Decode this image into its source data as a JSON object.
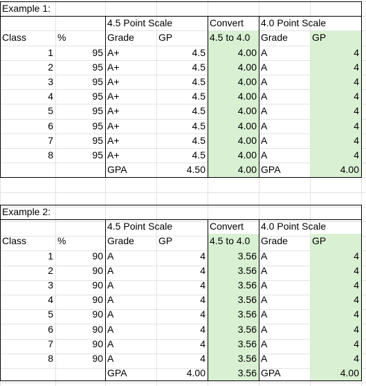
{
  "colors": {
    "accent_green": "#d9f0d3",
    "gridline": "#e2e2e2",
    "border": "#000000"
  },
  "examples": [
    {
      "title": "Example 1:",
      "scale45_header": "4.5 Point Scale",
      "convert_header": "Convert",
      "scale40_header": "4.0 Point Scale",
      "columns": {
        "class": "Class",
        "percent": "%",
        "grade45": "Grade",
        "gp45": "GP",
        "convert": "4.5 to 4.0",
        "grade40": "Grade",
        "gp40": "GP"
      },
      "rows": [
        {
          "class": "1",
          "percent": "95",
          "grade45": "A+",
          "gp45": "4.5",
          "convert": "4.00",
          "grade40": "A",
          "gp40": "4"
        },
        {
          "class": "2",
          "percent": "95",
          "grade45": "A+",
          "gp45": "4.5",
          "convert": "4.00",
          "grade40": "A",
          "gp40": "4"
        },
        {
          "class": "3",
          "percent": "95",
          "grade45": "A+",
          "gp45": "4.5",
          "convert": "4.00",
          "grade40": "A",
          "gp40": "4"
        },
        {
          "class": "4",
          "percent": "95",
          "grade45": "A+",
          "gp45": "4.5",
          "convert": "4.00",
          "grade40": "A",
          "gp40": "4"
        },
        {
          "class": "5",
          "percent": "95",
          "grade45": "A+",
          "gp45": "4.5",
          "convert": "4.00",
          "grade40": "A",
          "gp40": "4"
        },
        {
          "class": "6",
          "percent": "95",
          "grade45": "A+",
          "gp45": "4.5",
          "convert": "4.00",
          "grade40": "A",
          "gp40": "4"
        },
        {
          "class": "7",
          "percent": "95",
          "grade45": "A+",
          "gp45": "4.5",
          "convert": "4.00",
          "grade40": "A",
          "gp40": "4"
        },
        {
          "class": "8",
          "percent": "95",
          "grade45": "A+",
          "gp45": "4.5",
          "convert": "4.00",
          "grade40": "A",
          "gp40": "4"
        }
      ],
      "gpa": {
        "label45": "GPA",
        "value45": "4.50",
        "convert": "4.00",
        "label40": "GPA",
        "value40": "4.00"
      }
    },
    {
      "title": "Example 2:",
      "scale45_header": "4.5 Point Scale",
      "convert_header": "Convert",
      "scale40_header": "4.0 Point Scale",
      "columns": {
        "class": "Class",
        "percent": "%",
        "grade45": "Grade",
        "gp45": "GP",
        "convert": "4.5 to 4.0",
        "grade40": "Grade",
        "gp40": "GP"
      },
      "rows": [
        {
          "class": "1",
          "percent": "90",
          "grade45": "A",
          "gp45": "4",
          "convert": "3.56",
          "grade40": "A",
          "gp40": "4"
        },
        {
          "class": "2",
          "percent": "90",
          "grade45": "A",
          "gp45": "4",
          "convert": "3.56",
          "grade40": "A",
          "gp40": "4"
        },
        {
          "class": "3",
          "percent": "90",
          "grade45": "A",
          "gp45": "4",
          "convert": "3.56",
          "grade40": "A",
          "gp40": "4"
        },
        {
          "class": "4",
          "percent": "90",
          "grade45": "A",
          "gp45": "4",
          "convert": "3.56",
          "grade40": "A",
          "gp40": "4"
        },
        {
          "class": "5",
          "percent": "90",
          "grade45": "A",
          "gp45": "4",
          "convert": "3.56",
          "grade40": "A",
          "gp40": "4"
        },
        {
          "class": "6",
          "percent": "90",
          "grade45": "A",
          "gp45": "4",
          "convert": "3.56",
          "grade40": "A",
          "gp40": "4"
        },
        {
          "class": "7",
          "percent": "90",
          "grade45": "A",
          "gp45": "4",
          "convert": "3.56",
          "grade40": "A",
          "gp40": "4"
        },
        {
          "class": "8",
          "percent": "90",
          "grade45": "A",
          "gp45": "4",
          "convert": "3.56",
          "grade40": "A",
          "gp40": "4"
        }
      ],
      "gpa": {
        "label45": "GPA",
        "value45": "4.00",
        "convert": "3.56",
        "label40": "GPA",
        "value40": "4.00"
      }
    }
  ]
}
